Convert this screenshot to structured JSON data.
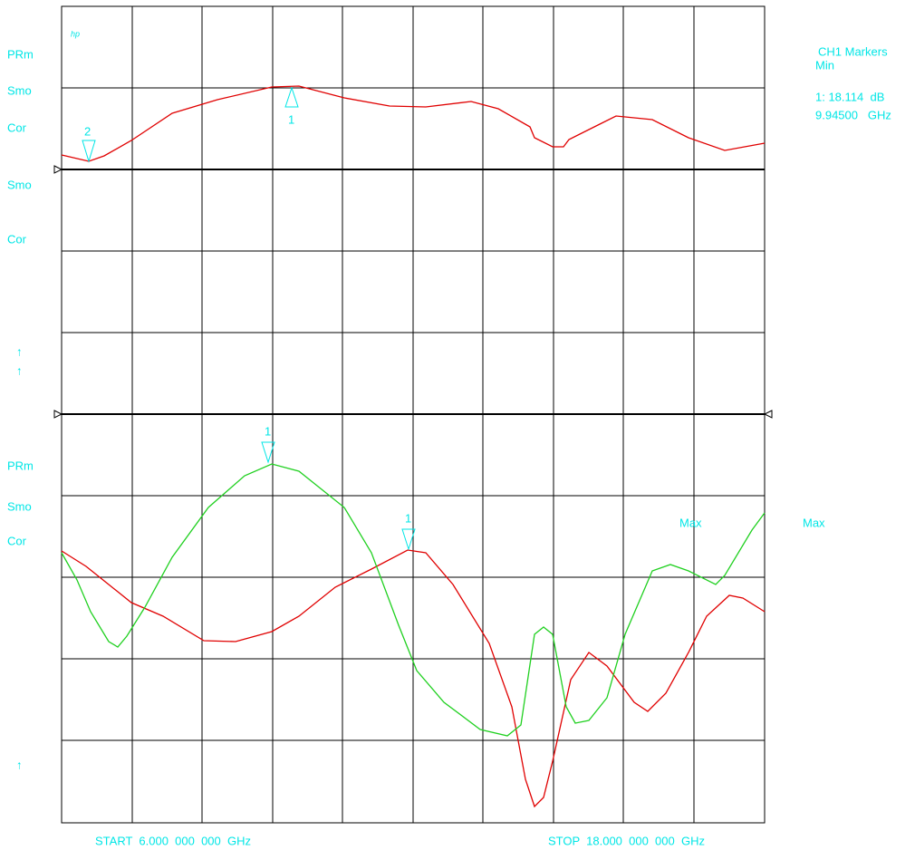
{
  "logo": "hp",
  "left_labels": [
    "PRm",
    "Smo",
    "Cor",
    "Smo",
    "Cor",
    "↑",
    "↑",
    "PRm",
    "Smo",
    "Cor",
    "↑"
  ],
  "markers_panel": {
    "title": "CH1 Markers",
    "mode": "Min",
    "marker_value": "1: 18.114  dB",
    "marker_freq": "9.94500   GHz"
  },
  "marker_labels": [
    "2",
    "1",
    "1",
    "1"
  ],
  "max_labels": [
    "Max",
    "Max"
  ],
  "start": "START  6.000  000  000  GHz",
  "stop": "STOP  18.000  000  000  GHz"
}
